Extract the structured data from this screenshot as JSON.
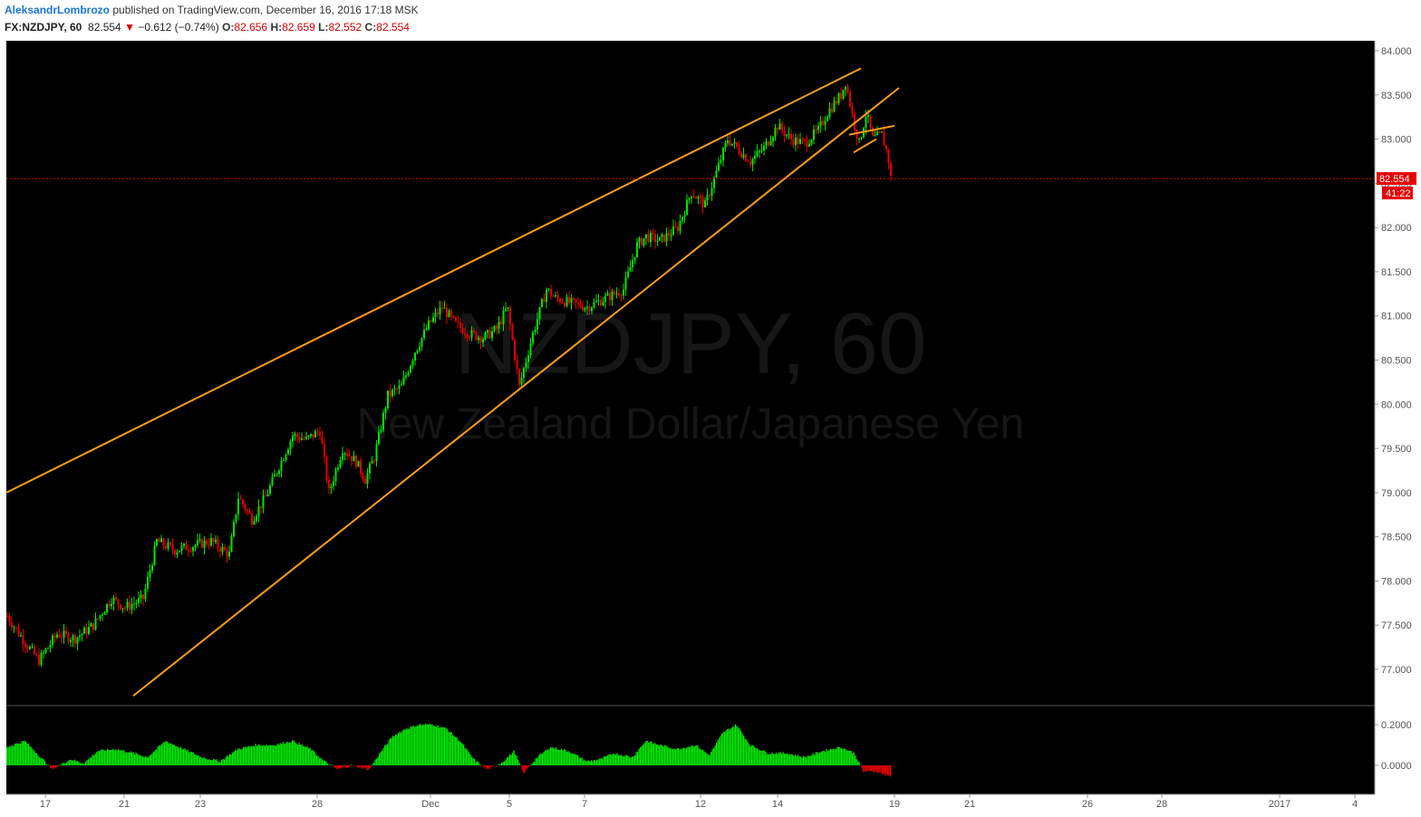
{
  "header": {
    "author": "AleksandrLombrozo",
    "published_text": " published on TradingView.com, December 16, 2016 17:18 MSK",
    "symbol": "FX:NZDJPY, 60",
    "last": "82.554",
    "change": "−0.612 (−0.74%)",
    "open_label": "O:",
    "open": "82.656",
    "high_label": "H:",
    "high": "82.659",
    "low_label": "L:",
    "low": "82.552",
    "close_label": "C:",
    "close": "82.554"
  },
  "watermark": {
    "symbol": "NZDJPY, 60",
    "name": "New Zealand Dollar/Japanese Yen"
  },
  "colors": {
    "background": "#000000",
    "up": "#00e600",
    "down": "#e60000",
    "trendline": "#ff9e1b",
    "last_price": "#e60000"
  },
  "chart_data": {
    "type": "candlestick",
    "symbol": "FX:NZDJPY",
    "interval": "60",
    "y_ticks": [
      "84.000",
      "83.500",
      "83.000",
      "82.500",
      "82.000",
      "81.500",
      "81.000",
      "80.500",
      "80.000",
      "79.500",
      "79.000",
      "78.500",
      "78.000",
      "77.500",
      "77.000"
    ],
    "ylim": [
      76.8,
      84.15
    ],
    "x_ticks": [
      "17",
      "21",
      "23",
      "28",
      "Dec",
      "5",
      "7",
      "12",
      "14",
      "19",
      "21",
      "26",
      "28",
      "2017",
      "4"
    ],
    "last_price_label": "82.554",
    "countdown_label": "41:22",
    "indicator_ticks": [
      "0.2000",
      "0.0000"
    ],
    "indicator_ylim": [
      -0.06,
      0.23
    ],
    "price_path": [
      [
        0,
        77.6
      ],
      [
        20,
        77.3
      ],
      [
        35,
        77.1
      ],
      [
        55,
        77.4
      ],
      [
        75,
        77.35
      ],
      [
        95,
        77.5
      ],
      [
        115,
        77.8
      ],
      [
        130,
        77.7
      ],
      [
        150,
        77.8
      ],
      [
        165,
        78.45
      ],
      [
        185,
        78.35
      ],
      [
        205,
        78.4
      ],
      [
        225,
        78.45
      ],
      [
        245,
        78.3
      ],
      [
        255,
        78.95
      ],
      [
        270,
        78.7
      ],
      [
        285,
        78.95
      ],
      [
        300,
        79.3
      ],
      [
        315,
        79.65
      ],
      [
        330,
        79.6
      ],
      [
        345,
        79.7
      ],
      [
        355,
        79.0
      ],
      [
        370,
        79.5
      ],
      [
        385,
        79.35
      ],
      [
        395,
        79.15
      ],
      [
        405,
        79.4
      ],
      [
        420,
        80.1
      ],
      [
        435,
        80.2
      ],
      [
        450,
        80.6
      ],
      [
        465,
        80.9
      ],
      [
        480,
        81.1
      ],
      [
        495,
        80.9
      ],
      [
        510,
        80.8
      ],
      [
        525,
        80.75
      ],
      [
        540,
        80.85
      ],
      [
        552,
        81.1
      ],
      [
        565,
        80.2
      ],
      [
        580,
        80.8
      ],
      [
        595,
        81.3
      ],
      [
        605,
        81.2
      ],
      [
        620,
        81.15
      ],
      [
        640,
        81.1
      ],
      [
        660,
        81.2
      ],
      [
        680,
        81.3
      ],
      [
        695,
        81.8
      ],
      [
        705,
        81.9
      ],
      [
        720,
        81.85
      ],
      [
        740,
        82.0
      ],
      [
        755,
        82.4
      ],
      [
        770,
        82.25
      ],
      [
        785,
        82.7
      ],
      [
        795,
        83.0
      ],
      [
        810,
        82.85
      ],
      [
        820,
        82.75
      ],
      [
        835,
        82.9
      ],
      [
        850,
        83.15
      ],
      [
        865,
        83.0
      ],
      [
        880,
        82.95
      ],
      [
        895,
        83.1
      ],
      [
        905,
        83.3
      ],
      [
        920,
        83.5
      ],
      [
        925,
        83.65
      ],
      [
        935,
        83.15
      ],
      [
        940,
        82.95
      ],
      [
        948,
        83.3
      ],
      [
        955,
        83.0
      ],
      [
        965,
        83.05
      ],
      [
        972,
        82.8
      ],
      [
        975,
        82.56
      ]
    ],
    "oscillator_path": [
      [
        0,
        0.09
      ],
      [
        20,
        0.12
      ],
      [
        35,
        0.05
      ],
      [
        50,
        -0.02
      ],
      [
        70,
        0.03
      ],
      [
        85,
        0.01
      ],
      [
        100,
        0.07
      ],
      [
        120,
        0.08
      ],
      [
        140,
        0.06
      ],
      [
        155,
        0.04
      ],
      [
        175,
        0.12
      ],
      [
        195,
        0.08
      ],
      [
        215,
        0.04
      ],
      [
        235,
        0.02
      ],
      [
        255,
        0.08
      ],
      [
        275,
        0.1
      ],
      [
        295,
        0.1
      ],
      [
        315,
        0.12
      ],
      [
        335,
        0.08
      ],
      [
        350,
        0.02
      ],
      [
        365,
        -0.02
      ],
      [
        380,
        0.0
      ],
      [
        400,
        -0.02
      ],
      [
        410,
        0.05
      ],
      [
        425,
        0.14
      ],
      [
        440,
        0.18
      ],
      [
        455,
        0.2
      ],
      [
        470,
        0.2
      ],
      [
        485,
        0.18
      ],
      [
        500,
        0.12
      ],
      [
        515,
        0.03
      ],
      [
        530,
        -0.02
      ],
      [
        545,
        0.01
      ],
      [
        560,
        0.07
      ],
      [
        570,
        -0.04
      ],
      [
        585,
        0.04
      ],
      [
        600,
        0.09
      ],
      [
        620,
        0.07
      ],
      [
        640,
        0.02
      ],
      [
        655,
        0.03
      ],
      [
        670,
        0.06
      ],
      [
        690,
        0.04
      ],
      [
        705,
        0.12
      ],
      [
        720,
        0.1
      ],
      [
        740,
        0.08
      ],
      [
        760,
        0.1
      ],
      [
        775,
        0.05
      ],
      [
        790,
        0.16
      ],
      [
        805,
        0.2
      ],
      [
        820,
        0.1
      ],
      [
        840,
        0.06
      ],
      [
        860,
        0.06
      ],
      [
        880,
        0.04
      ],
      [
        900,
        0.07
      ],
      [
        920,
        0.09
      ],
      [
        935,
        0.06
      ],
      [
        945,
        -0.03
      ],
      [
        960,
        -0.03
      ],
      [
        975,
        -0.055
      ]
    ],
    "trendlines": [
      {
        "name": "upper-wedge",
        "points": [
          [
            0,
            79.0
          ],
          [
            943,
            83.8
          ]
        ]
      },
      {
        "name": "lower-wedge",
        "points": [
          [
            140,
            76.7
          ],
          [
            985,
            83.58
          ]
        ]
      },
      {
        "name": "flag-top",
        "points": [
          [
            930,
            83.05
          ],
          [
            980,
            83.15
          ]
        ]
      },
      {
        "name": "flag-bottom",
        "points": [
          [
            935,
            82.85
          ],
          [
            960,
            83.0
          ]
        ]
      }
    ]
  }
}
